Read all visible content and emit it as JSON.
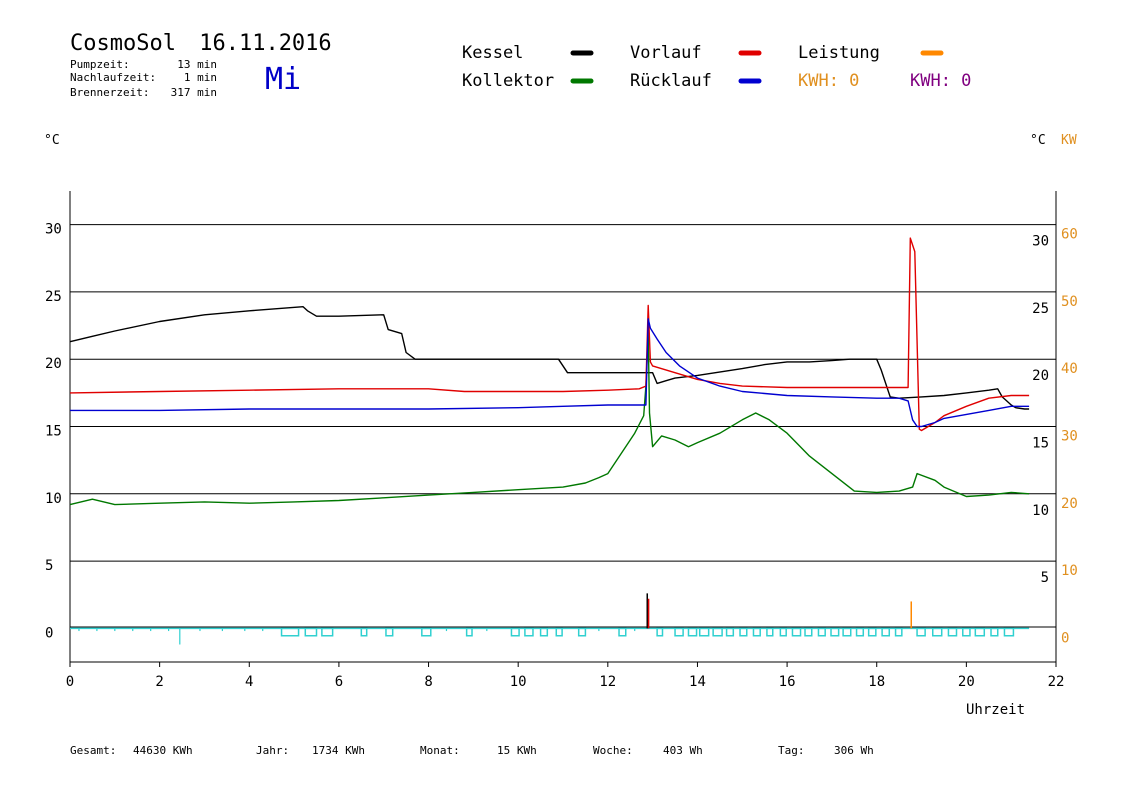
{
  "header": {
    "app": "CosmoSol",
    "date": "16.11.2016",
    "weekday": "Mi",
    "info": [
      {
        "label": "Pumpzeit:",
        "value": "13 min"
      },
      {
        "label": "Nachlaufzeit:",
        "value": "1 min"
      },
      {
        "label": "Brennerzeit:",
        "value": "317 min"
      }
    ]
  },
  "legend": {
    "kessel": "Kessel",
    "kollektor": "Kollektor",
    "vorlauf": "Vorlauf",
    "ruecklauf": "Rücklauf",
    "leistung": "Leistung",
    "kwh1": "KWH: 0",
    "kwh2": "KWH: 0"
  },
  "axis_units": {
    "left": "°C",
    "right_c": "°C",
    "right_kw": "KW",
    "x": "Uhrzeit"
  },
  "footer": [
    {
      "label": "Gesamt:",
      "value": "44630 KWh"
    },
    {
      "label": "Jahr:",
      "value": "1734 KWh"
    },
    {
      "label": "Monat:",
      "value": "15 KWh"
    },
    {
      "label": "Woche:",
      "value": "403 Wh"
    },
    {
      "label": "Tag:",
      "value": "306 Wh"
    }
  ],
  "colors": {
    "kessel": "#000000",
    "kollektor": "#007800",
    "vorlauf": "#e00000",
    "ruecklauf": "#0000d0",
    "leistung": "#ff8800",
    "kwh2": "#800080",
    "pump": "#30d0d0",
    "weekday": "#0000c8",
    "kw_axis": "#e09020"
  },
  "chart_data": {
    "type": "line",
    "xlabel": "Uhrzeit",
    "xlim": [
      0,
      22
    ],
    "xticks": [
      0,
      2,
      4,
      6,
      8,
      10,
      12,
      14,
      16,
      18,
      20,
      22
    ],
    "ylim": [
      -2.5,
      32.5
    ],
    "yticks_left": [
      0,
      5,
      10,
      15,
      20,
      25,
      30
    ],
    "yticks_right_c": [
      5,
      10,
      15,
      20,
      25,
      30
    ],
    "yticks_right_kw": [
      0,
      10,
      20,
      30,
      40,
      50,
      60
    ],
    "grid_y": [
      5,
      10,
      15,
      20,
      25,
      30
    ],
    "series": [
      {
        "name": "Kessel",
        "key": "kessel",
        "x": [
          0,
          0.5,
          1,
          2,
          3,
          4,
          4.8,
          5.2,
          5.3,
          5.5,
          6,
          7,
          7.1,
          7.4,
          7.5,
          7.7,
          9,
          10.9,
          11.1,
          13,
          13.1,
          13.3,
          13.5,
          14,
          15,
          15.5,
          16,
          16.5,
          17,
          17.4,
          18,
          18.1,
          18.3,
          18.5,
          19,
          19.5,
          20,
          20.5,
          20.7,
          20.8,
          20.9,
          21,
          21.1,
          21.3,
          21.4
        ],
        "y": [
          21.3,
          21.7,
          22.1,
          22.8,
          23.3,
          23.6,
          23.8,
          23.9,
          23.6,
          23.2,
          23.2,
          23.3,
          22.2,
          21.9,
          20.5,
          20,
          20,
          20,
          19,
          19,
          18.2,
          18.4,
          18.6,
          18.8,
          19.3,
          19.6,
          19.8,
          19.8,
          19.9,
          20,
          20,
          19.2,
          17.2,
          17.1,
          17.2,
          17.3,
          17.5,
          17.7,
          17.8,
          17.2,
          16.9,
          16.6,
          16.4,
          16.3,
          16.3
        ]
      },
      {
        "name": "Kollektor",
        "key": "kollektor",
        "x": [
          0,
          0.5,
          1,
          2,
          3,
          4,
          5,
          6,
          7,
          8,
          9,
          10,
          11,
          11.5,
          11.8,
          12,
          12.3,
          12.6,
          12.8,
          12.85,
          12.9,
          12.93,
          13,
          13.2,
          13.5,
          13.8,
          14,
          14.5,
          15,
          15.3,
          15.6,
          16,
          16.5,
          17,
          17.5,
          18,
          18.5,
          18.8,
          18.9,
          19.3,
          19.5,
          20,
          20.5,
          21,
          21.4
        ],
        "y": [
          9.2,
          9.6,
          9.2,
          9.3,
          9.4,
          9.3,
          9.4,
          9.5,
          9.7,
          9.9,
          10.1,
          10.3,
          10.5,
          10.8,
          11.2,
          11.5,
          13,
          14.5,
          15.8,
          18,
          22,
          16,
          13.5,
          14.3,
          14,
          13.5,
          13.8,
          14.5,
          15.5,
          16,
          15.5,
          14.5,
          12.8,
          11.5,
          10.2,
          10.1,
          10.2,
          10.5,
          11.5,
          11,
          10.5,
          9.8,
          9.9,
          10.1,
          10
        ]
      },
      {
        "name": "Vorlauf",
        "key": "vorlauf",
        "x": [
          0,
          2,
          4,
          6,
          8,
          8.8,
          9,
          10,
          11,
          12,
          12.7,
          12.85,
          12.9,
          12.95,
          13,
          13.5,
          14,
          14.5,
          15,
          16,
          17,
          18,
          18.4,
          18.6,
          18.7,
          18.75,
          18.85,
          18.95,
          19,
          19.3,
          19.5,
          20,
          20.5,
          21,
          21.4
        ],
        "y": [
          17.5,
          17.6,
          17.7,
          17.8,
          17.8,
          17.6,
          17.6,
          17.6,
          17.6,
          17.7,
          17.8,
          18,
          24,
          19.8,
          19.5,
          19,
          18.5,
          18.2,
          18,
          17.9,
          17.9,
          17.9,
          17.9,
          17.9,
          17.9,
          29,
          28,
          14.8,
          14.7,
          15.3,
          15.8,
          16.5,
          17.1,
          17.3,
          17.3
        ]
      },
      {
        "name": "Rücklauf",
        "key": "ruecklauf",
        "x": [
          0,
          2,
          4,
          6,
          8,
          10,
          11,
          12,
          12.85,
          12.9,
          12.95,
          13.1,
          13.3,
          13.6,
          14,
          14.5,
          15,
          16,
          17,
          18,
          18.5,
          18.7,
          18.8,
          18.9,
          19,
          19.3,
          19.5,
          20,
          20.5,
          21,
          21.4
        ],
        "y": [
          16.2,
          16.2,
          16.3,
          16.3,
          16.3,
          16.4,
          16.5,
          16.6,
          16.6,
          23,
          22.3,
          21.5,
          20.5,
          19.5,
          18.6,
          18.0,
          17.6,
          17.3,
          17.2,
          17.1,
          17.1,
          16.9,
          15.5,
          15.0,
          15.0,
          15.3,
          15.6,
          15.9,
          16.2,
          16.5,
          16.5
        ]
      }
    ],
    "leistung_spikes": [
      {
        "x": 12.88,
        "y": 2.6,
        "color_key": "kessel"
      },
      {
        "x": 12.91,
        "y": 2.2,
        "color_key": "vorlauf"
      },
      {
        "x": 18.77,
        "y": 2.0,
        "color_key": "leistung"
      }
    ],
    "pump_pulses": [
      [
        4.72,
        5.1
      ],
      [
        5.25,
        5.5
      ],
      [
        5.62,
        5.86
      ],
      [
        6.5,
        6.62
      ],
      [
        7.05,
        7.2
      ],
      [
        7.85,
        8.05
      ],
      [
        8.85,
        8.97
      ],
      [
        9.85,
        10.02
      ],
      [
        10.15,
        10.33
      ],
      [
        10.5,
        10.65
      ],
      [
        10.85,
        10.98
      ],
      [
        11.35,
        11.5
      ],
      [
        12.25,
        12.4
      ],
      [
        13.1,
        13.22
      ],
      [
        13.5,
        13.68
      ],
      [
        13.8,
        13.98
      ],
      [
        14.05,
        14.25
      ],
      [
        14.35,
        14.55
      ],
      [
        14.65,
        14.8
      ],
      [
        14.95,
        15.1
      ],
      [
        15.25,
        15.4
      ],
      [
        15.55,
        15.68
      ],
      [
        15.85,
        15.98
      ],
      [
        16.12,
        16.3
      ],
      [
        16.4,
        16.55
      ],
      [
        16.7,
        16.85
      ],
      [
        16.98,
        17.15
      ],
      [
        17.25,
        17.42
      ],
      [
        17.55,
        17.7
      ],
      [
        17.82,
        17.98
      ],
      [
        18.12,
        18.28
      ],
      [
        18.42,
        18.56
      ],
      [
        18.9,
        19.08
      ],
      [
        19.25,
        19.45
      ],
      [
        19.6,
        19.78
      ],
      [
        19.92,
        20.08
      ],
      [
        20.2,
        20.4
      ],
      [
        20.55,
        20.7
      ],
      [
        20.85,
        21.05
      ]
    ],
    "pump_ticks": [
      0.2,
      0.6,
      1.0,
      1.4,
      1.8,
      2.2,
      2.45,
      2.9,
      3.4,
      3.9,
      4.3,
      8.4,
      9.3,
      11.8,
      12.6
    ]
  }
}
